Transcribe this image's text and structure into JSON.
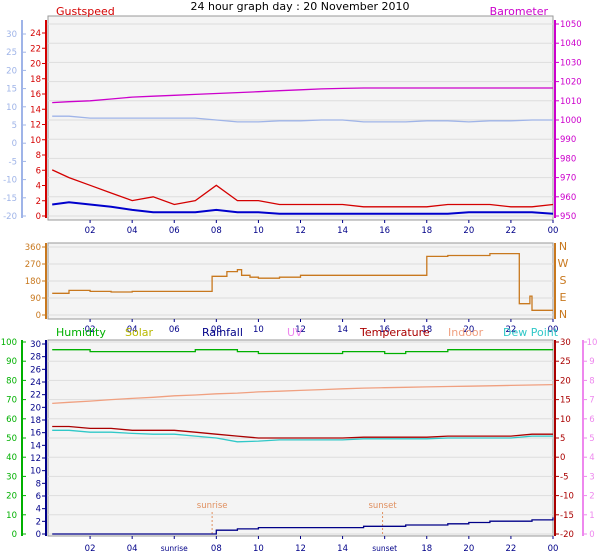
{
  "title": "24 hour graph day : 20 November 2010",
  "x_ticks": [
    "02",
    "04",
    "06",
    "08",
    "10",
    "12",
    "14",
    "16",
    "18",
    "20",
    "22",
    "00"
  ],
  "x_ticks_bottom": [
    "02",
    "04",
    "sunrise",
    "08",
    "10",
    "12",
    "14",
    "sunset",
    "18",
    "20",
    "22",
    "00"
  ],
  "sun_labels": {
    "sunrise": "sunrise",
    "sunset": "sunset"
  },
  "colors": {
    "gust": "#d40000",
    "wind": "#0000cc",
    "baro": "#cc00cc",
    "outer_temp_axis": "#9fb4e8",
    "direction": "#c8781e",
    "humidity": "#00b000",
    "solar": "#b8b800",
    "rainfall": "#000088",
    "uv": "#ee88ee",
    "temperature": "#aa0000",
    "indoor": "#f0a080",
    "dewpoint": "#30c8c8",
    "sun": "#e09060",
    "bg": "#f4f4f4",
    "axis": "#999999"
  },
  "chart_data": [
    {
      "type": "line",
      "panel": "wind-baro",
      "legend": {
        "gust": "Gustspeed",
        "baro": "Barometer"
      },
      "left_axis_outer": {
        "ticks": [
          "30",
          "25",
          "20",
          "15",
          "10",
          "5",
          "0",
          "-5",
          "-10",
          "-15",
          "-20"
        ],
        "ylim": [
          -20,
          30
        ]
      },
      "left_axis_inner": {
        "ticks": [
          "24",
          "22",
          "20",
          "18",
          "16",
          "14",
          "12",
          "10",
          "8",
          "6",
          "4",
          "2",
          "0"
        ],
        "ylim": [
          0,
          25
        ]
      },
      "right_axis": {
        "ticks": [
          "1050",
          "1040",
          "1030",
          "1020",
          "1010",
          "1000",
          "990",
          "980",
          "970",
          "960",
          "950"
        ],
        "ylim": [
          947,
          1052
        ]
      },
      "x_hours": [
        0.2,
        1,
        2,
        3,
        4,
        5,
        6,
        7,
        8,
        9,
        10,
        11,
        12,
        13,
        14,
        15,
        16,
        17,
        18,
        19,
        20,
        21,
        22,
        23,
        24
      ],
      "series": [
        {
          "key": "baro",
          "axis": "right",
          "values": [
            1009,
            1009.5,
            1010,
            1011,
            1012,
            1012.5,
            1013,
            1013.5,
            1014,
            1014.5,
            1015,
            1015.5,
            1016,
            1016.5,
            1016.8,
            1017,
            1017,
            1017,
            1017,
            1017,
            1017,
            1017,
            1017,
            1017,
            1017
          ]
        },
        {
          "key": "outer",
          "axis": "outer",
          "values": [
            6,
            6,
            5.5,
            5.5,
            5.5,
            5.5,
            5.5,
            5.5,
            5,
            4.5,
            4.5,
            4.8,
            4.8,
            5,
            5,
            4.5,
            4.5,
            4.5,
            4.8,
            4.8,
            4.5,
            4.8,
            4.8,
            5,
            5
          ]
        },
        {
          "key": "gust",
          "axis": "inner",
          "values": [
            6,
            5,
            4,
            3,
            2,
            2.5,
            1.5,
            2,
            4,
            2,
            2,
            1.5,
            1.5,
            1.5,
            1.5,
            1.2,
            1.2,
            1.2,
            1.2,
            1.5,
            1.5,
            1.5,
            1.2,
            1.2,
            1.5
          ]
        },
        {
          "key": "wind",
          "axis": "inner",
          "values": [
            1.5,
            1.8,
            1.5,
            1.2,
            0.8,
            0.5,
            0.5,
            0.5,
            0.8,
            0.5,
            0.5,
            0.3,
            0.3,
            0.3,
            0.3,
            0.3,
            0.3,
            0.3,
            0.3,
            0.3,
            0.5,
            0.5,
            0.5,
            0.5,
            0.3
          ]
        }
      ]
    },
    {
      "type": "line",
      "panel": "direction",
      "left_axis": {
        "ticks": [
          "360",
          "270",
          "180",
          "90",
          "0"
        ],
        "ylim": [
          0,
          360
        ]
      },
      "right_axis": {
        "ticks": [
          "N",
          "W",
          "S",
          "E",
          "N"
        ]
      },
      "x_hours": [
        0.2,
        1,
        2,
        3,
        4,
        5,
        6,
        7,
        7.3,
        7.8,
        8.5,
        9,
        9.2,
        9.6,
        10,
        11,
        12,
        13,
        14,
        15,
        16,
        17,
        17.8,
        18,
        19,
        20,
        21,
        21.8,
        22.4,
        22.9,
        23,
        23.5,
        24
      ],
      "values": [
        115,
        130,
        125,
        122,
        125,
        125,
        125,
        125,
        125,
        205,
        230,
        240,
        210,
        200,
        195,
        200,
        210,
        210,
        210,
        210,
        210,
        210,
        210,
        310,
        315,
        315,
        325,
        325,
        60,
        100,
        25,
        25,
        25
      ]
    },
    {
      "type": "line",
      "panel": "multi",
      "legend": {
        "humidity": "Humidity",
        "solar": "Solar",
        "rainfall": "Rainfall",
        "uv": "UV",
        "temperature": "Temperature",
        "indoor": "Indoor",
        "dewpoint": "Dew Point"
      },
      "axis_humidity": {
        "ticks": [
          "100",
          "90",
          "80",
          "70",
          "60",
          "50",
          "40",
          "30",
          "20",
          "10",
          "0"
        ],
        "ylim": [
          0,
          100
        ]
      },
      "axis_rain": {
        "ticks": [
          "30",
          "28",
          "26",
          "24",
          "22",
          "20",
          "18",
          "16",
          "14",
          "12",
          "10",
          "8",
          "6",
          "4",
          "2",
          "0"
        ],
        "ylim": [
          0,
          30
        ]
      },
      "axis_temp": {
        "ticks": [
          "30",
          "25",
          "20",
          "15",
          "10",
          "5",
          "0",
          "-5",
          "-10",
          "-15",
          "-20"
        ],
        "ylim": [
          -20,
          30
        ]
      },
      "axis_uv": {
        "ticks": [
          "10",
          "9",
          "8",
          "7",
          "6",
          "5",
          "4",
          "3",
          "2",
          "1",
          "0"
        ],
        "ylim": [
          0,
          10
        ]
      },
      "x_hours": [
        0.2,
        1,
        2,
        3,
        4,
        5,
        6,
        7,
        8,
        9,
        10,
        11,
        12,
        13,
        14,
        15,
        16,
        17,
        18,
        19,
        20,
        21,
        22,
        23,
        24
      ],
      "series": [
        {
          "key": "humidity",
          "axis": "humidity",
          "values": [
            96,
            96,
            95,
            95,
            95,
            95,
            95,
            96,
            96,
            95,
            94,
            94,
            94,
            94,
            95,
            95,
            94,
            95,
            95,
            96,
            96,
            96,
            96,
            96,
            96
          ]
        },
        {
          "key": "indoor",
          "axis": "temp",
          "values": [
            14,
            14.3,
            14.6,
            15,
            15.3,
            15.6,
            16,
            16.2,
            16.5,
            16.7,
            17,
            17.2,
            17.4,
            17.6,
            17.8,
            18,
            18.1,
            18.2,
            18.3,
            18.4,
            18.5,
            18.6,
            18.7,
            18.8,
            18.9
          ]
        },
        {
          "key": "temperature",
          "axis": "temp",
          "values": [
            8,
            8,
            7.5,
            7.5,
            7,
            7,
            7,
            6.5,
            6,
            5.5,
            5,
            5,
            5,
            5,
            5,
            5.2,
            5.2,
            5.2,
            5.2,
            5.5,
            5.5,
            5.5,
            5.5,
            6,
            6
          ]
        },
        {
          "key": "dewpoint",
          "axis": "temp",
          "values": [
            7,
            7,
            6.5,
            6.5,
            6.2,
            6,
            6,
            5.5,
            5,
            4,
            4.2,
            4.5,
            4.5,
            4.5,
            4.5,
            4.8,
            4.8,
            4.8,
            4.8,
            5,
            5,
            5,
            5,
            5.5,
            5.5
          ]
        },
        {
          "key": "rainfall",
          "axis": "rain",
          "values": [
            0,
            0,
            0,
            0,
            0,
            0,
            0,
            0,
            0.6,
            0.8,
            1.0,
            1.0,
            1.0,
            1.0,
            1.0,
            1.2,
            1.2,
            1.4,
            1.4,
            1.6,
            1.8,
            2.0,
            2.0,
            2.2,
            2.6
          ]
        }
      ],
      "sunrise_hour": 7.8,
      "sunset_hour": 15.9
    }
  ]
}
